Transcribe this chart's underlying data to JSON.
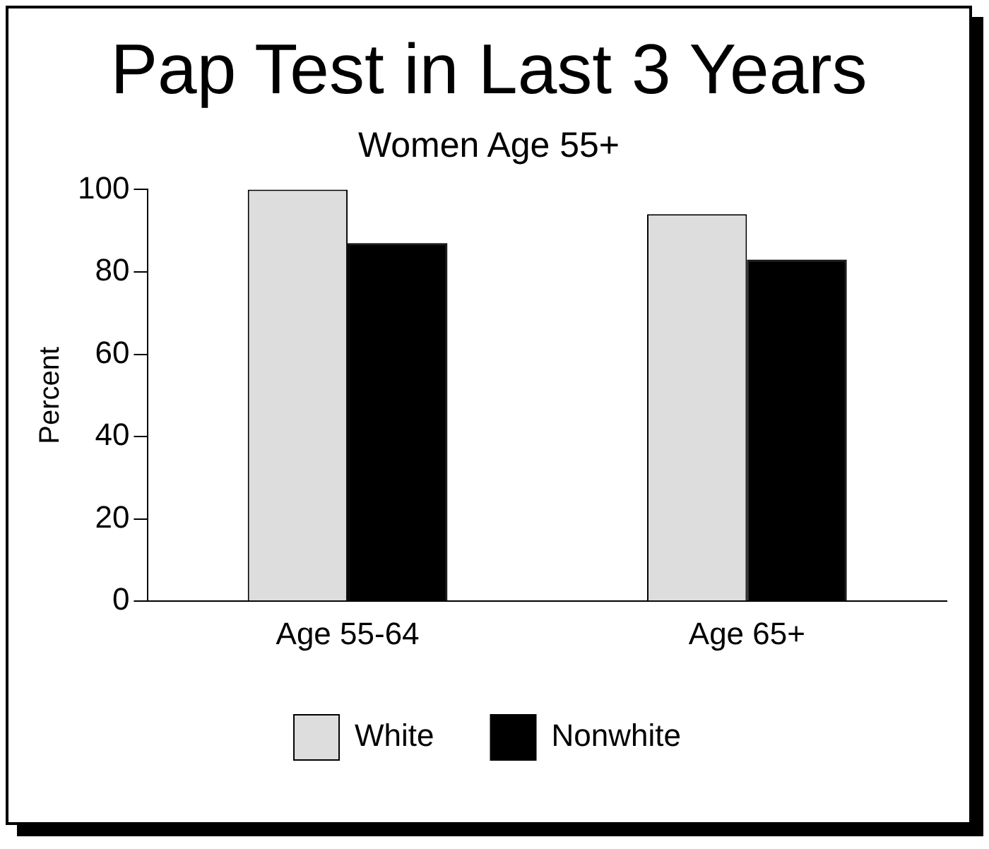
{
  "chart_data": {
    "type": "bar",
    "title": "Pap Test in Last 3 Years",
    "subtitle": "Women Age 55+",
    "ylabel": "Percent",
    "categories": [
      "Age 55-64",
      "Age 65+"
    ],
    "series": [
      {
        "name": "White",
        "color": "#dddddd",
        "values": [
          100,
          94
        ]
      },
      {
        "name": "Nonwhite",
        "color": "#000000",
        "values": [
          87,
          83
        ]
      }
    ],
    "ylim": [
      0,
      100
    ],
    "yticks": [
      0,
      20,
      40,
      60,
      80,
      100
    ],
    "grid": false,
    "legend": "bottom"
  }
}
